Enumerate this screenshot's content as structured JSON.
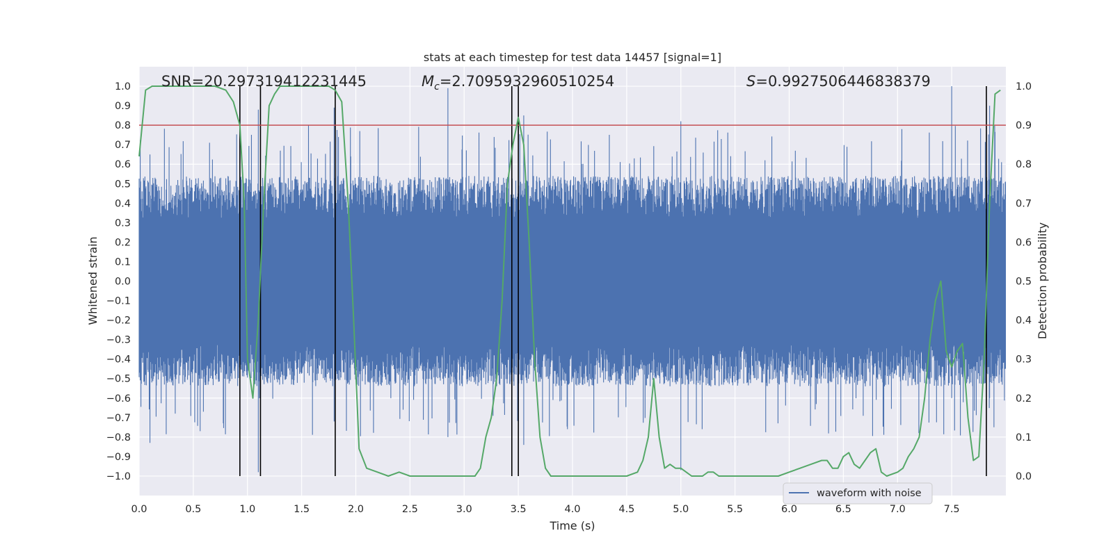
{
  "chart_data": {
    "type": "line",
    "title": "stats at each timestep for test data 14457 [signal=1]",
    "xlabel": "Time (s)",
    "ylabel": "Whitened strain",
    "y2label": "Detection probability",
    "xlim": [
      0.0,
      8.0
    ],
    "ylim": [
      -1.1,
      1.1
    ],
    "y2lim": [
      -0.05,
      1.05
    ],
    "xticks": [
      "0.0",
      "0.5",
      "1.0",
      "1.5",
      "2.0",
      "2.5",
      "3.0",
      "3.5",
      "4.0",
      "4.5",
      "5.0",
      "5.5",
      "6.0",
      "6.5",
      "7.0",
      "7.5"
    ],
    "yticks": [
      "−1.0",
      "−0.9",
      "−0.8",
      "−0.7",
      "−0.6",
      "−0.5",
      "−0.4",
      "−0.3",
      "−0.2",
      "−0.1",
      "0.0",
      "0.1",
      "0.2",
      "0.3",
      "0.4",
      "0.5",
      "0.6",
      "0.7",
      "0.8",
      "0.9",
      "1.0"
    ],
    "y2ticks": [
      "0.0",
      "0.1",
      "0.2",
      "0.3",
      "0.4",
      "0.5",
      "0.6",
      "0.7",
      "0.8",
      "0.9",
      "1.0"
    ],
    "annotations": {
      "snr": "SNR=20.297319412231445",
      "mc_symbol": "M",
      "mc_subscript": "c",
      "mc_value": "=2.7095932960510254",
      "s_symbol": "S",
      "s_value": "=0.9927506446838379"
    },
    "threshold": {
      "axis": "right",
      "value": 0.9,
      "color": "#c44e52"
    },
    "vertical_markers": [
      0.93,
      1.12,
      1.81,
      3.44,
      3.5,
      7.82
    ],
    "series": [
      {
        "name": "waveform with noise",
        "axis": "left",
        "color": "#4c72b0",
        "note": "dense noise band; amplitude envelope approx ±0.6 with spikes",
        "envelope_peaks": [
          {
            "x": 0.1,
            "hi": 0.65,
            "lo": -0.64
          },
          {
            "x": 0.1,
            "hi": 0.65,
            "lo": -0.83
          },
          {
            "x": 1.1,
            "hi": 0.88,
            "lo": -0.98
          },
          {
            "x": 1.8,
            "hi": 0.89,
            "lo": -0.72
          },
          {
            "x": 2.85,
            "hi": 0.99,
            "lo": -0.8
          },
          {
            "x": 3.55,
            "hi": 0.85,
            "lo": -0.84
          },
          {
            "x": 5.0,
            "hi": 0.82,
            "lo": -0.97
          },
          {
            "x": 7.5,
            "hi": 1.0,
            "lo": -0.6
          },
          {
            "x": 7.85,
            "hi": 0.9,
            "lo": -0.6
          }
        ]
      },
      {
        "name": "detection probability",
        "axis": "right",
        "color": "#55a868",
        "x": [
          0.0,
          0.06,
          0.12,
          0.2,
          0.3,
          0.4,
          0.5,
          0.6,
          0.7,
          0.8,
          0.87,
          0.93,
          0.97,
          1.0,
          1.05,
          1.1,
          1.15,
          1.2,
          1.25,
          1.3,
          1.35,
          1.4,
          1.45,
          1.5,
          1.55,
          1.6,
          1.65,
          1.7,
          1.75,
          1.81,
          1.87,
          1.93,
          1.98,
          2.03,
          2.1,
          2.2,
          2.3,
          2.4,
          2.5,
          2.6,
          2.7,
          2.8,
          2.9,
          3.0,
          3.1,
          3.15,
          3.2,
          3.25,
          3.3,
          3.35,
          3.4,
          3.45,
          3.5,
          3.55,
          3.6,
          3.65,
          3.7,
          3.75,
          3.8,
          3.9,
          4.0,
          4.1,
          4.2,
          4.3,
          4.4,
          4.5,
          4.6,
          4.65,
          4.7,
          4.75,
          4.8,
          4.85,
          4.9,
          4.95,
          5.0,
          5.05,
          5.1,
          5.15,
          5.2,
          5.25,
          5.3,
          5.35,
          5.4,
          5.5,
          5.6,
          5.7,
          5.8,
          5.9,
          6.0,
          6.1,
          6.2,
          6.3,
          6.35,
          6.4,
          6.45,
          6.5,
          6.55,
          6.6,
          6.65,
          6.7,
          6.75,
          6.8,
          6.85,
          6.9,
          7.0,
          7.05,
          7.1,
          7.15,
          7.2,
          7.25,
          7.3,
          7.35,
          7.4,
          7.45,
          7.5,
          7.55,
          7.6,
          7.65,
          7.7,
          7.75,
          7.8,
          7.85,
          7.9,
          7.95
        ],
        "values": [
          0.82,
          0.99,
          1.0,
          1.0,
          1.0,
          1.0,
          1.0,
          1.0,
          1.0,
          0.99,
          0.96,
          0.9,
          0.7,
          0.3,
          0.2,
          0.4,
          0.7,
          0.95,
          0.98,
          1.0,
          1.0,
          1.0,
          1.0,
          1.0,
          1.0,
          1.0,
          1.0,
          1.0,
          1.0,
          0.99,
          0.96,
          0.7,
          0.4,
          0.07,
          0.02,
          0.01,
          0.0,
          0.01,
          0.0,
          0.0,
          0.0,
          0.0,
          0.0,
          0.0,
          0.0,
          0.02,
          0.1,
          0.15,
          0.25,
          0.45,
          0.75,
          0.85,
          0.92,
          0.85,
          0.6,
          0.3,
          0.1,
          0.02,
          0.0,
          0.0,
          0.0,
          0.0,
          0.0,
          0.0,
          0.0,
          0.0,
          0.01,
          0.04,
          0.1,
          0.25,
          0.1,
          0.02,
          0.03,
          0.02,
          0.02,
          0.01,
          0.0,
          0.0,
          0.0,
          0.01,
          0.01,
          0.0,
          0.0,
          0.0,
          0.0,
          0.0,
          0.0,
          0.0,
          0.01,
          0.02,
          0.03,
          0.04,
          0.04,
          0.02,
          0.02,
          0.05,
          0.06,
          0.03,
          0.02,
          0.04,
          0.06,
          0.07,
          0.01,
          0.0,
          0.01,
          0.02,
          0.05,
          0.07,
          0.1,
          0.2,
          0.35,
          0.45,
          0.5,
          0.32,
          0.28,
          0.32,
          0.34,
          0.15,
          0.04,
          0.05,
          0.3,
          0.7,
          0.98,
          0.99
        ],
        "show_in_legend": false
      }
    ],
    "legend": {
      "placement": "lower-right",
      "entries": [
        "waveform with noise"
      ]
    },
    "grid": true
  }
}
